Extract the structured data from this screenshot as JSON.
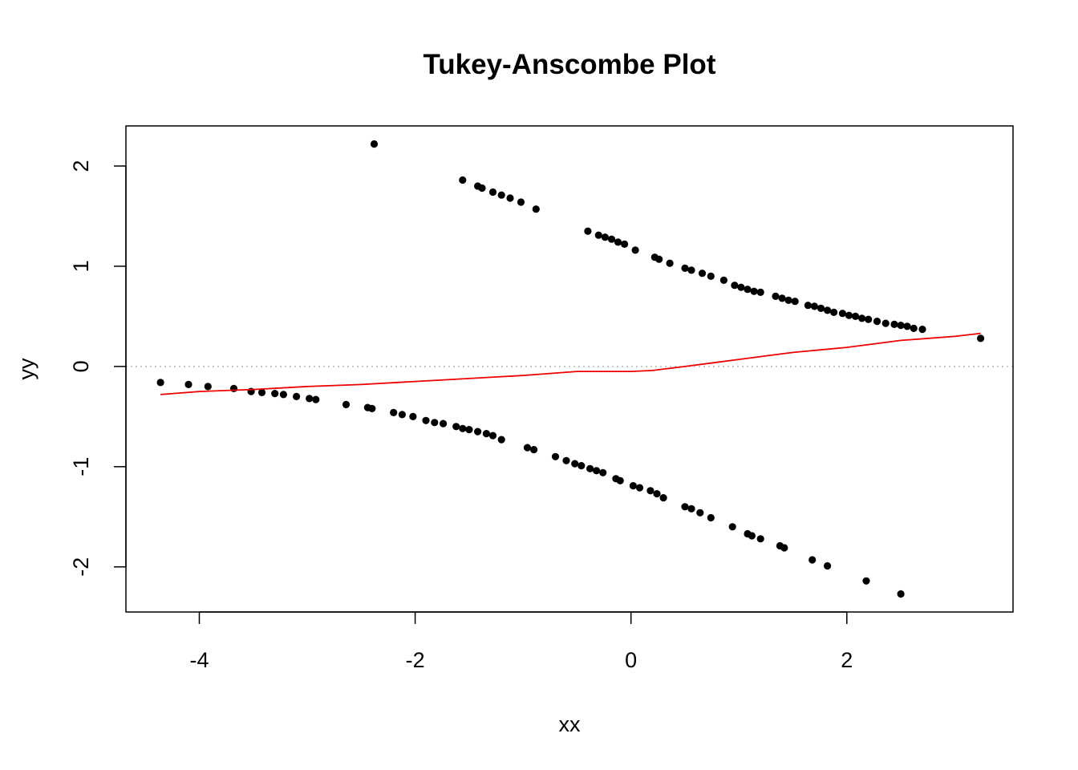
{
  "chart_data": {
    "type": "scatter",
    "title": "Tukey-Anscombe Plot",
    "xlabel": "xx",
    "ylabel": "yy",
    "xlim": [
      -4.68,
      3.54
    ],
    "ylim": [
      -2.45,
      2.4
    ],
    "x_ticks": [
      -4,
      -2,
      0,
      2
    ],
    "y_ticks": [
      -2,
      -1,
      0,
      1,
      2
    ],
    "x_tick_labels": [
      "-4",
      "-2",
      "0",
      "2"
    ],
    "y_tick_labels": [
      "-2",
      "-1",
      "0",
      "1",
      "2"
    ],
    "grid": false,
    "legend": "none",
    "reference_line": {
      "y": 0,
      "style": "dotted",
      "color": "#bbbbbb"
    },
    "colors": {
      "points": "#000000",
      "smoother": "#ee0000",
      "frame": "#000000"
    },
    "series": [
      {
        "type": "scatter",
        "points": [
          [
            -4.36,
            -0.16
          ],
          [
            -4.1,
            -0.18
          ],
          [
            -3.92,
            -0.2
          ],
          [
            -3.68,
            -0.22
          ],
          [
            -3.52,
            -0.25
          ],
          [
            -3.42,
            -0.26
          ],
          [
            -3.3,
            -0.27
          ],
          [
            -3.22,
            -0.28
          ],
          [
            -3.1,
            -0.3
          ],
          [
            -2.98,
            -0.32
          ],
          [
            -2.92,
            -0.33
          ],
          [
            -2.64,
            -0.38
          ],
          [
            -2.44,
            -0.41
          ],
          [
            -2.4,
            -0.42
          ],
          [
            -2.2,
            -0.46
          ],
          [
            -2.12,
            -0.48
          ],
          [
            -2.02,
            -0.5
          ],
          [
            -1.9,
            -0.54
          ],
          [
            -1.82,
            -0.56
          ],
          [
            -1.74,
            -0.57
          ],
          [
            -1.62,
            -0.6
          ],
          [
            -1.56,
            -0.62
          ],
          [
            -1.5,
            -0.63
          ],
          [
            -1.42,
            -0.65
          ],
          [
            -1.34,
            -0.67
          ],
          [
            -1.28,
            -0.69
          ],
          [
            -1.2,
            -0.73
          ],
          [
            -0.96,
            -0.81
          ],
          [
            -0.9,
            -0.83
          ],
          [
            -0.7,
            -0.9
          ],
          [
            -0.6,
            -0.94
          ],
          [
            -0.52,
            -0.97
          ],
          [
            -0.46,
            -0.99
          ],
          [
            -0.38,
            -1.02
          ],
          [
            -0.32,
            -1.04
          ],
          [
            -0.26,
            -1.06
          ],
          [
            -0.14,
            -1.12
          ],
          [
            -0.1,
            -1.14
          ],
          [
            0.02,
            -1.19
          ],
          [
            0.08,
            -1.21
          ],
          [
            0.18,
            -1.24
          ],
          [
            0.24,
            -1.27
          ],
          [
            0.3,
            -1.31
          ],
          [
            0.5,
            -1.4
          ],
          [
            0.56,
            -1.42
          ],
          [
            0.64,
            -1.46
          ],
          [
            0.74,
            -1.51
          ],
          [
            0.94,
            -1.6
          ],
          [
            1.08,
            -1.67
          ],
          [
            1.12,
            -1.69
          ],
          [
            1.2,
            -1.72
          ],
          [
            1.38,
            -1.79
          ],
          [
            1.42,
            -1.81
          ],
          [
            1.68,
            -1.93
          ],
          [
            1.82,
            -1.99
          ],
          [
            2.18,
            -2.14
          ],
          [
            2.5,
            -2.27
          ],
          [
            -2.38,
            2.22
          ],
          [
            -1.56,
            1.86
          ],
          [
            -1.42,
            1.8
          ],
          [
            -1.38,
            1.78
          ],
          [
            -1.28,
            1.74
          ],
          [
            -1.2,
            1.71
          ],
          [
            -1.12,
            1.68
          ],
          [
            -1.02,
            1.64
          ],
          [
            -0.88,
            1.57
          ],
          [
            -0.4,
            1.35
          ],
          [
            -0.3,
            1.31
          ],
          [
            -0.24,
            1.29
          ],
          [
            -0.18,
            1.27
          ],
          [
            -0.12,
            1.24
          ],
          [
            -0.06,
            1.22
          ],
          [
            0.04,
            1.16
          ],
          [
            0.22,
            1.09
          ],
          [
            0.26,
            1.07
          ],
          [
            0.36,
            1.03
          ],
          [
            0.5,
            0.98
          ],
          [
            0.56,
            0.96
          ],
          [
            0.66,
            0.93
          ],
          [
            0.74,
            0.9
          ],
          [
            0.86,
            0.86
          ],
          [
            0.96,
            0.81
          ],
          [
            1.02,
            0.79
          ],
          [
            1.08,
            0.77
          ],
          [
            1.14,
            0.75
          ],
          [
            1.2,
            0.74
          ],
          [
            1.34,
            0.7
          ],
          [
            1.4,
            0.68
          ],
          [
            1.46,
            0.66
          ],
          [
            1.52,
            0.65
          ],
          [
            1.64,
            0.61
          ],
          [
            1.7,
            0.6
          ],
          [
            1.76,
            0.58
          ],
          [
            1.82,
            0.56
          ],
          [
            1.88,
            0.54
          ],
          [
            1.96,
            0.53
          ],
          [
            2.02,
            0.51
          ],
          [
            2.08,
            0.5
          ],
          [
            2.14,
            0.48
          ],
          [
            2.2,
            0.47
          ],
          [
            2.28,
            0.45
          ],
          [
            2.36,
            0.43
          ],
          [
            2.44,
            0.42
          ],
          [
            2.5,
            0.41
          ],
          [
            2.56,
            0.4
          ],
          [
            2.62,
            0.38
          ],
          [
            2.7,
            0.37
          ],
          [
            3.24,
            0.28
          ]
        ]
      },
      {
        "type": "line",
        "points": [
          [
            -4.36,
            -0.28
          ],
          [
            -4.0,
            -0.25
          ],
          [
            -3.5,
            -0.23
          ],
          [
            -3.0,
            -0.2
          ],
          [
            -2.5,
            -0.18
          ],
          [
            -2.0,
            -0.15
          ],
          [
            -1.5,
            -0.12
          ],
          [
            -1.0,
            -0.09
          ],
          [
            -0.5,
            -0.05
          ],
          [
            0.0,
            -0.05
          ],
          [
            0.2,
            -0.04
          ],
          [
            0.5,
            0.0
          ],
          [
            1.0,
            0.07
          ],
          [
            1.5,
            0.14
          ],
          [
            2.0,
            0.19
          ],
          [
            2.5,
            0.26
          ],
          [
            3.0,
            0.3
          ],
          [
            3.24,
            0.33
          ]
        ]
      }
    ]
  }
}
